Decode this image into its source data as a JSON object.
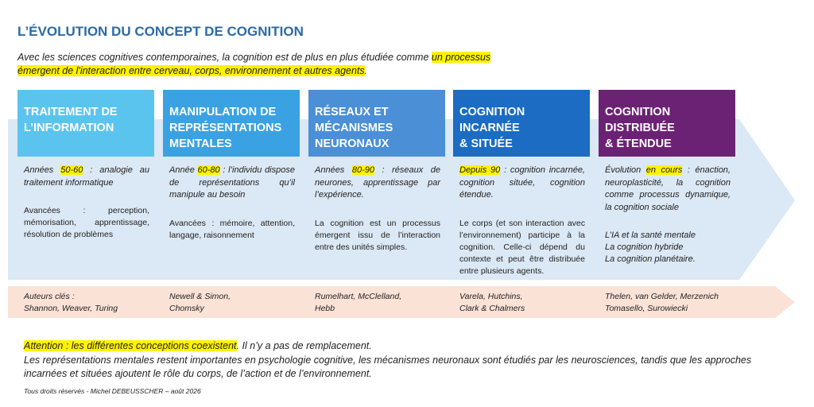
{
  "title": "L’ÉVOLUTION DU CONCEPT DE COGNITION",
  "intro": {
    "text": "Avec les sciences cognitives contemporaines, la cognition est de plus en plus étudiée comme",
    "highlight": "un processus émergent de l'interaction entre cerveau, corps, environnement et autres agents",
    "end": "."
  },
  "columns": [
    {
      "header": [
        "TRAITEMENT DE",
        "L’INFORMATION"
      ],
      "period": {
        "before": "Années ",
        "highlight": "50-60",
        "after": " : analogie au traitement informatique"
      },
      "details": [
        "Avancées : perception, mémorisation, apprentissage, résolution de problèmes"
      ],
      "authors": [
        "Auteurs clés :",
        "Shannon, Weaver, Turing"
      ]
    },
    {
      "header": [
        "MANIPULATION DE",
        "REPRÉSENTATIONS",
        "MENTALES"
      ],
      "period": {
        "before": "Année ",
        "highlight": "60-80",
        "after": " : l’individu dispose de représentations qu’il manipule au besoin"
      },
      "details": [
        "Avancées : mémoire, attention, langage, raisonnement"
      ],
      "authors": [
        "Newell & Simon,",
        "Chomsky"
      ]
    },
    {
      "header": [
        "RÉSEAUX ET",
        "MÉCANISMES",
        "NEURONAUX"
      ],
      "period": {
        "before": "Années ",
        "highlight": "80-90",
        "after": " : réseaux de neurones, apprentissage par l’expérience."
      },
      "details": [
        "La cognition est un processus émergent issu de l’interaction entre des unités simples."
      ],
      "authors": [
        "Rumelhart, McClelland,",
        "Hebb"
      ]
    },
    {
      "header": [
        "COGNITION",
        "INCARNÉE",
        "& SITUÉE"
      ],
      "period": {
        "before": "",
        "highlight": "Depuis 90",
        "after": " : cognition incarnée, cognition située, cognition étendue."
      },
      "details": [
        "Le corps (et son interaction avec l’environnement) participe à la cognition. Celle-ci dépend du contexte et peut être distribuée entre plusieurs agents."
      ],
      "authors": [
        "Varela, Hutchins,",
        "Clark & Chalmers"
      ]
    },
    {
      "header": [
        "COGNITION",
        "DISTRIBUÉE",
        "& ÉTENDUE"
      ],
      "period": {
        "before": "Évolution ",
        "highlight": "en cours",
        "after": " : énaction, neuroplasticité, la cognition comme processus dynamique, la cognition sociale"
      },
      "details": [
        "L’IA et la santé mentale",
        "La cognition hybride",
        "La cognition planétaire."
      ],
      "authors": [
        "Thelen, van Gelder, Merzenich",
        "Tomasello, Surowiecki"
      ]
    }
  ],
  "note": {
    "highlight": "Attention : les différentes conceptions coexistent",
    "rest": ". Il n’y a pas de remplacement.",
    "body": "Les représentations mentales restent importantes en psychologie cognitive, les mécanismes neuronaux sont étudiés par les neurosciences, tandis que les approches incarnées et situées ajoutent le rôle du corps, de l’action et de l’environnement."
  },
  "credit": "Tous droits réservés - Michel DEBEUSSCHER – août 2026"
}
